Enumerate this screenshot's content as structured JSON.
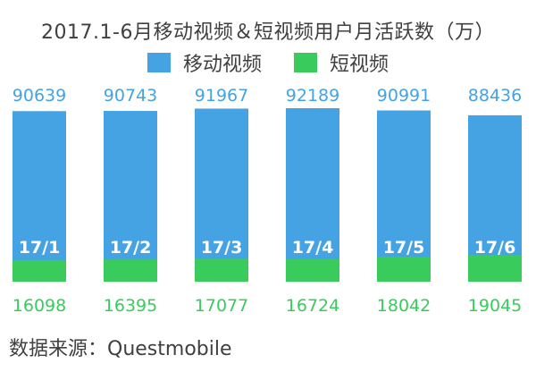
{
  "chart_data": {
    "type": "bar",
    "title": "2017.1-6月移动视频＆短视频用户月活跃数（万）",
    "categories": [
      "17/1",
      "17/2",
      "17/3",
      "17/4",
      "17/5",
      "17/6"
    ],
    "series": [
      {
        "name": "移动视频",
        "values": [
          90639,
          90743,
          91967,
          92189,
          90991,
          88436
        ],
        "color": "#45a3e3"
      },
      {
        "name": "短视频",
        "values": [
          16098,
          16395,
          17077,
          16724,
          18042,
          19045
        ],
        "color": "#39cc5c"
      }
    ],
    "layout": "overlaid",
    "ylim": [
      0,
      95000
    ],
    "grid": false,
    "legend_position": "top-center"
  },
  "source": "数据来源：Questmobile"
}
